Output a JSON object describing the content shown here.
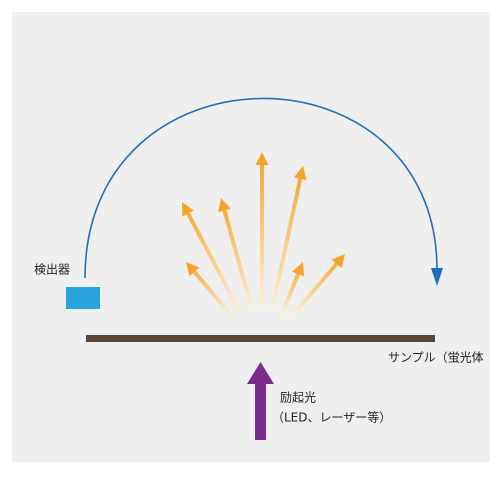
{
  "labels": {
    "detector": "検出器",
    "sample": "サンプル（蛍光体",
    "excitation": "励起光",
    "excitation_source": "（LED、レーザー等）"
  }
}
